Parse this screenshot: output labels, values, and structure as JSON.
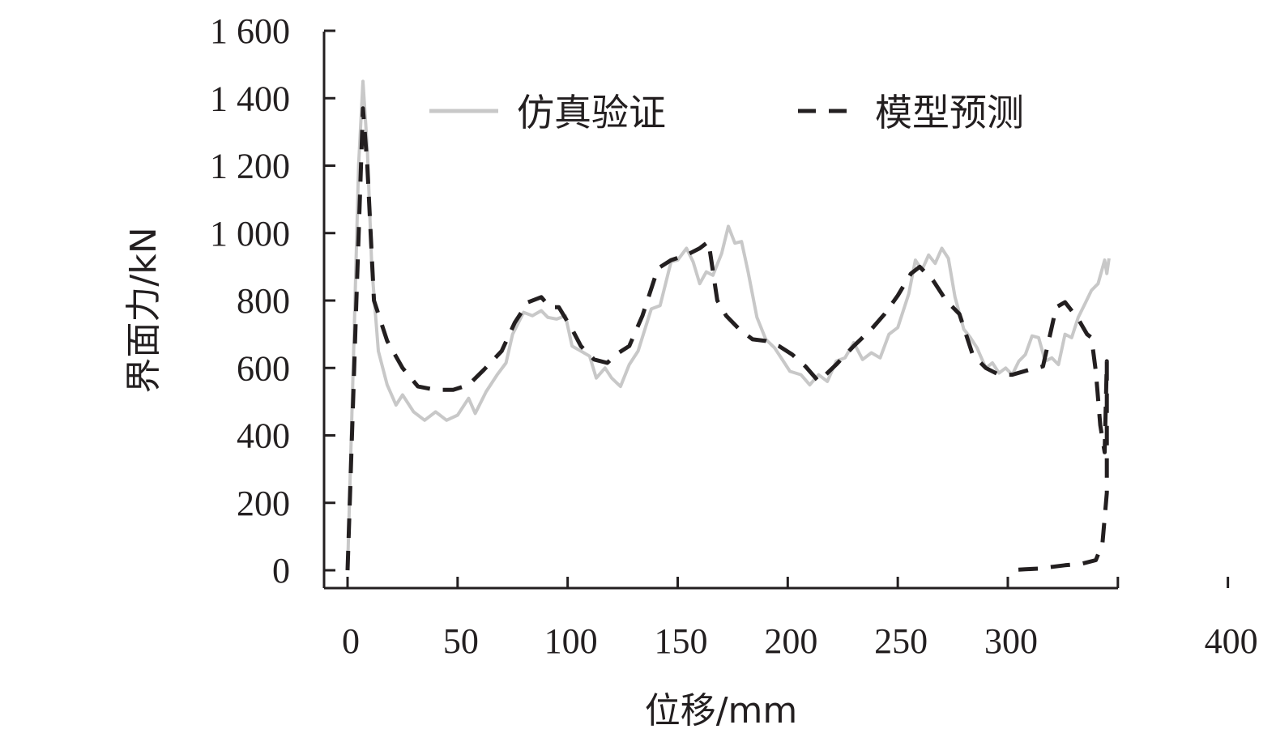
{
  "chart_data": {
    "type": "line",
    "xlabel": "位移/mm",
    "ylabel": "界面力/kN",
    "xlim": [
      -10,
      400
    ],
    "ylim": [
      -50,
      1600
    ],
    "x_ticks": [
      0,
      50,
      100,
      150,
      200,
      250,
      300,
      350,
      400
    ],
    "x_tick_labels": [
      "0",
      "50",
      "100",
      "150",
      "200",
      "250",
      "300",
      "",
      "400"
    ],
    "y_ticks": [
      0,
      200,
      400,
      600,
      800,
      1000,
      1200,
      1400,
      1600
    ],
    "y_tick_labels": [
      "0",
      "200",
      "400",
      "600",
      "800",
      "1 000",
      "1 200",
      "1 400",
      "1 600"
    ],
    "grid": false,
    "legend_position": "top",
    "series": [
      {
        "name": "仿真验证",
        "color": "#c8c8c8",
        "style": "solid",
        "points": [
          [
            0,
            0
          ],
          [
            3,
            700
          ],
          [
            5,
            1200
          ],
          [
            7,
            1450
          ],
          [
            9,
            1250
          ],
          [
            11,
            900
          ],
          [
            14,
            650
          ],
          [
            18,
            550
          ],
          [
            22,
            490
          ],
          [
            25,
            520
          ],
          [
            30,
            470
          ],
          [
            35,
            445
          ],
          [
            40,
            470
          ],
          [
            45,
            445
          ],
          [
            50,
            460
          ],
          [
            55,
            510
          ],
          [
            58,
            465
          ],
          [
            63,
            530
          ],
          [
            68,
            580
          ],
          [
            72,
            615
          ],
          [
            75,
            700
          ],
          [
            80,
            765
          ],
          [
            84,
            755
          ],
          [
            88,
            770
          ],
          [
            91,
            750
          ],
          [
            95,
            745
          ],
          [
            99,
            755
          ],
          [
            102,
            665
          ],
          [
            106,
            650
          ],
          [
            110,
            635
          ],
          [
            113,
            570
          ],
          [
            117,
            600
          ],
          [
            120,
            570
          ],
          [
            124,
            545
          ],
          [
            128,
            610
          ],
          [
            132,
            650
          ],
          [
            138,
            775
          ],
          [
            142,
            785
          ],
          [
            147,
            915
          ],
          [
            150,
            920
          ],
          [
            154,
            955
          ],
          [
            157,
            915
          ],
          [
            160,
            850
          ],
          [
            163,
            885
          ],
          [
            166,
            875
          ],
          [
            170,
            940
          ],
          [
            173,
            1020
          ],
          [
            176,
            970
          ],
          [
            179,
            975
          ],
          [
            182,
            885
          ],
          [
            186,
            750
          ],
          [
            190,
            685
          ],
          [
            194,
            660
          ],
          [
            198,
            620
          ],
          [
            201,
            590
          ],
          [
            206,
            580
          ],
          [
            210,
            550
          ],
          [
            214,
            580
          ],
          [
            218,
            560
          ],
          [
            222,
            620
          ],
          [
            226,
            630
          ],
          [
            230,
            675
          ],
          [
            234,
            625
          ],
          [
            238,
            645
          ],
          [
            242,
            630
          ],
          [
            246,
            700
          ],
          [
            250,
            720
          ],
          [
            255,
            820
          ],
          [
            258,
            920
          ],
          [
            261,
            890
          ],
          [
            264,
            935
          ],
          [
            267,
            910
          ],
          [
            270,
            955
          ],
          [
            273,
            925
          ],
          [
            276,
            810
          ],
          [
            280,
            715
          ],
          [
            283,
            690
          ],
          [
            286,
            660
          ],
          [
            290,
            600
          ],
          [
            293,
            615
          ],
          [
            296,
            585
          ],
          [
            299,
            600
          ],
          [
            302,
            580
          ],
          [
            305,
            620
          ],
          [
            308,
            640
          ],
          [
            311,
            695
          ],
          [
            314,
            690
          ],
          [
            317,
            620
          ],
          [
            320,
            630
          ],
          [
            323,
            610
          ],
          [
            326,
            700
          ],
          [
            329,
            690
          ],
          [
            332,
            750
          ],
          [
            335,
            790
          ],
          [
            338,
            830
          ],
          [
            341,
            850
          ],
          [
            344,
            920
          ],
          [
            345,
            880
          ],
          [
            346,
            925
          ]
        ]
      },
      {
        "name": "模型预测",
        "color": "#231f20",
        "style": "dashed",
        "points": [
          [
            0,
            0
          ],
          [
            4,
            800
          ],
          [
            7,
            1370
          ],
          [
            9,
            1200
          ],
          [
            12,
            800
          ],
          [
            18,
            680
          ],
          [
            25,
            600
          ],
          [
            32,
            545
          ],
          [
            40,
            535
          ],
          [
            48,
            535
          ],
          [
            55,
            550
          ],
          [
            62,
            595
          ],
          [
            70,
            650
          ],
          [
            76,
            735
          ],
          [
            82,
            795
          ],
          [
            88,
            810
          ],
          [
            92,
            780
          ],
          [
            96,
            780
          ],
          [
            102,
            715
          ],
          [
            106,
            665
          ],
          [
            112,
            625
          ],
          [
            118,
            615
          ],
          [
            122,
            640
          ],
          [
            128,
            665
          ],
          [
            134,
            755
          ],
          [
            141,
            895
          ],
          [
            147,
            920
          ],
          [
            154,
            935
          ],
          [
            160,
            955
          ],
          [
            164,
            975
          ],
          [
            168,
            800
          ],
          [
            172,
            755
          ],
          [
            178,
            715
          ],
          [
            184,
            685
          ],
          [
            190,
            680
          ],
          [
            196,
            665
          ],
          [
            202,
            640
          ],
          [
            208,
            605
          ],
          [
            214,
            560
          ],
          [
            222,
            610
          ],
          [
            230,
            665
          ],
          [
            238,
            715
          ],
          [
            244,
            760
          ],
          [
            250,
            815
          ],
          [
            256,
            880
          ],
          [
            260,
            900
          ],
          [
            266,
            860
          ],
          [
            272,
            800
          ],
          [
            278,
            760
          ],
          [
            284,
            640
          ],
          [
            290,
            600
          ],
          [
            296,
            580
          ],
          [
            302,
            580
          ],
          [
            310,
            595
          ],
          [
            316,
            605
          ],
          [
            322,
            780
          ],
          [
            326,
            795
          ],
          [
            332,
            745
          ],
          [
            336,
            700
          ],
          [
            338,
            690
          ],
          [
            340,
            590
          ],
          [
            342,
            430
          ],
          [
            344,
            350
          ],
          [
            345,
            620
          ],
          [
            345,
            230
          ],
          [
            343,
            80
          ],
          [
            340,
            30
          ],
          [
            334,
            20
          ],
          [
            326,
            15
          ],
          [
            320,
            10
          ],
          [
            314,
            5
          ],
          [
            308,
            3
          ],
          [
            300,
            0
          ]
        ]
      }
    ]
  }
}
